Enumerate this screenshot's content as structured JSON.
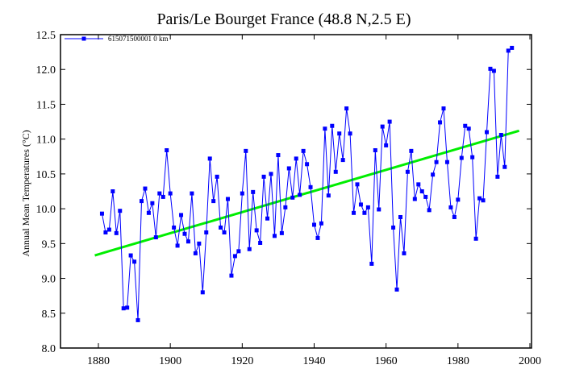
{
  "chart_data": {
    "type": "line",
    "title": "Paris/Le Bourget France (48.8 N,2.5 E)",
    "xlabel": "",
    "ylabel": "Annual Mean Temperatures (°C)",
    "xlim": [
      1870,
      2000
    ],
    "ylim": [
      8.0,
      12.5
    ],
    "xticks": [
      1880,
      1900,
      1920,
      1940,
      1960,
      1980,
      2000
    ],
    "yticks": [
      "8.0",
      "8.5",
      "9.0",
      "9.5",
      "10.0",
      "10.5",
      "11.0",
      "11.5",
      "12.0",
      "12.5"
    ],
    "grid": false,
    "legend": {
      "placement": "top-left",
      "entries": [
        "615071500001  0 km"
      ]
    },
    "series": [
      {
        "name": "615071500001  0 km",
        "color": "#0000ff",
        "start_year": 1881,
        "values": [
          9.93,
          9.66,
          9.7,
          10.25,
          9.65,
          9.97,
          8.57,
          8.58,
          9.33,
          9.24,
          8.4,
          10.11,
          10.29,
          9.94,
          10.08,
          9.59,
          10.22,
          10.17,
          10.84,
          10.22,
          9.73,
          9.47,
          9.91,
          9.64,
          9.53,
          10.22,
          9.36,
          9.5,
          8.8,
          9.66,
          10.72,
          10.11,
          10.46,
          9.73,
          9.66,
          10.14,
          9.04,
          9.32,
          9.39,
          10.22,
          10.83,
          9.42,
          10.24,
          9.69,
          9.51,
          10.46,
          9.86,
          10.5,
          9.61,
          10.77,
          9.65,
          10.02,
          10.58,
          10.16,
          10.72,
          10.2,
          10.83,
          10.64,
          10.31,
          9.77,
          9.58,
          9.79,
          11.15,
          10.19,
          11.19,
          10.53,
          11.08,
          10.7,
          11.44,
          11.08,
          9.94,
          10.35,
          10.06,
          9.94,
          10.02,
          9.21,
          10.84,
          9.99,
          11.18,
          10.91,
          11.25,
          9.73,
          8.84,
          9.88,
          9.36,
          10.53,
          10.83,
          10.14,
          10.35,
          10.25,
          10.17,
          9.98,
          10.49,
          10.67,
          11.24,
          11.44,
          10.67,
          10.02,
          9.88,
          10.13,
          10.73,
          11.19,
          11.15,
          10.74,
          9.57,
          10.15,
          10.12,
          11.1,
          12.01,
          11.98,
          10.46,
          11.06,
          10.6,
          12.27,
          12.31
        ]
      }
    ],
    "trend": {
      "color": "#00ee00",
      "x": [
        1879,
        1997
      ],
      "y": [
        9.33,
        11.12
      ]
    }
  }
}
